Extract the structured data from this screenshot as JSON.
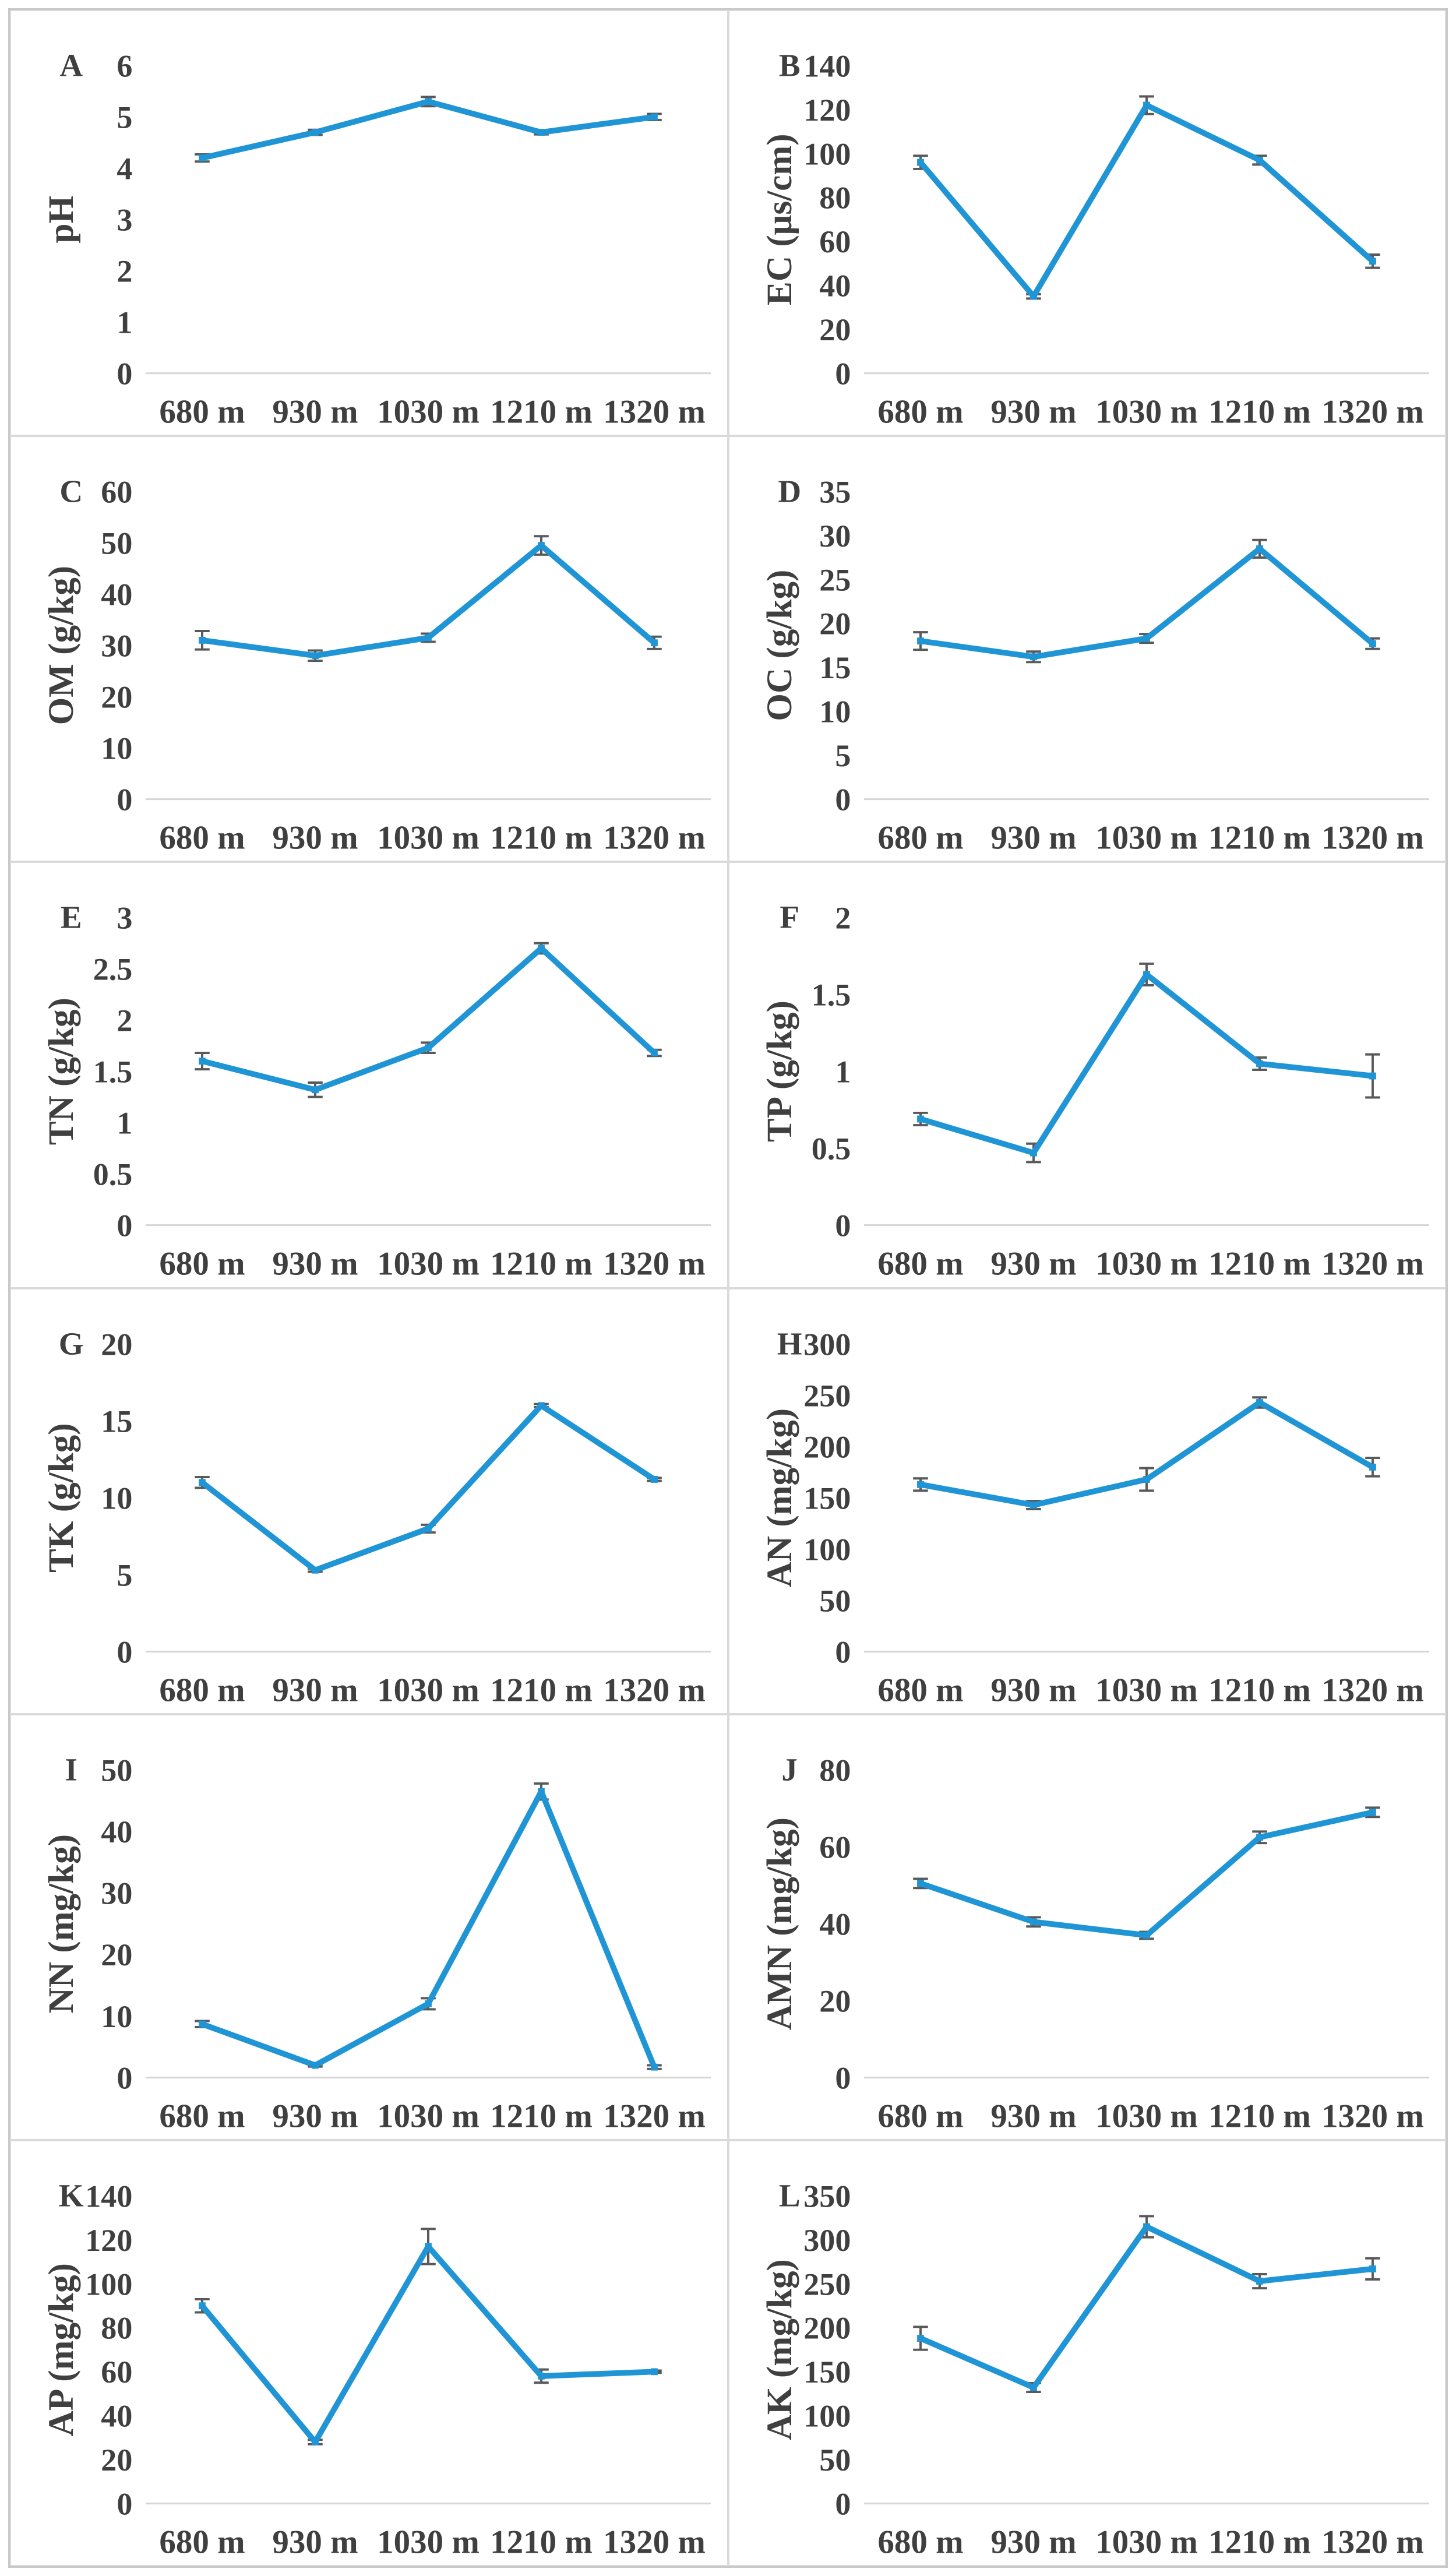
{
  "figure": {
    "description": "Soil property line charts across five elevations",
    "categories": [
      "680 m",
      "930 m",
      "1030 m",
      "1210 m",
      "1320 m"
    ],
    "line_color": "#2095d6",
    "error_bar_color": "#595959",
    "text_color": "#3f3f3f",
    "baseline_color": "#d6d6d6"
  },
  "chart_data": [
    {
      "type": "line",
      "panel": "A",
      "ylabel": "pH",
      "categories": [
        "680 m",
        "930 m",
        "1030 m",
        "1210 m",
        "1320 m"
      ],
      "values": [
        4.2,
        4.7,
        5.3,
        4.7,
        5.0
      ],
      "errors": [
        0.07,
        0.05,
        0.09,
        0.04,
        0.06
      ],
      "ylim": [
        0,
        6
      ],
      "ytick_step": 1,
      "grid": false,
      "legend": "none"
    },
    {
      "type": "line",
      "panel": "B",
      "ylabel": "EC (μs/cm)",
      "categories": [
        "680 m",
        "930 m",
        "1030 m",
        "1210 m",
        "1320 m"
      ],
      "values": [
        96,
        35,
        122,
        97,
        51
      ],
      "errors": [
        3,
        1,
        4,
        2,
        3
      ],
      "ylim": [
        0,
        140
      ],
      "ytick_step": 20,
      "grid": false,
      "legend": "none"
    },
    {
      "type": "line",
      "panel": "C",
      "ylabel": "OM (g/kg)",
      "categories": [
        "680 m",
        "930 m",
        "1030 m",
        "1210 m",
        "1320 m"
      ],
      "values": [
        31,
        28,
        31.5,
        49.5,
        30.5
      ],
      "errors": [
        1.8,
        1.0,
        0.8,
        1.8,
        1.2
      ],
      "ylim": [
        0,
        60
      ],
      "ytick_step": 10,
      "grid": false,
      "legend": "none"
    },
    {
      "type": "line",
      "panel": "D",
      "ylabel": "OC (g/kg)",
      "categories": [
        "680 m",
        "930 m",
        "1030 m",
        "1210 m",
        "1320 m"
      ],
      "values": [
        18,
        16.2,
        18.3,
        28.5,
        17.7
      ],
      "errors": [
        1.0,
        0.6,
        0.5,
        1.0,
        0.6
      ],
      "ylim": [
        0,
        35
      ],
      "ytick_step": 5,
      "grid": false,
      "legend": "none"
    },
    {
      "type": "line",
      "panel": "E",
      "ylabel": "TN (g/kg)",
      "categories": [
        "680 m",
        "930 m",
        "1030 m",
        "1210 m",
        "1320 m"
      ],
      "values": [
        1.6,
        1.32,
        1.73,
        2.7,
        1.68
      ],
      "errors": [
        0.08,
        0.07,
        0.05,
        0.05,
        0.03
      ],
      "ylim": [
        0,
        3
      ],
      "ytick_step": 0.5,
      "grid": false,
      "legend": "none"
    },
    {
      "type": "line",
      "panel": "F",
      "ylabel": "TP (g/kg)",
      "categories": [
        "680 m",
        "930 m",
        "1030 m",
        "1210 m",
        "1320 m"
      ],
      "values": [
        0.69,
        0.47,
        1.63,
        1.05,
        0.97
      ],
      "errors": [
        0.04,
        0.06,
        0.07,
        0.04,
        0.14
      ],
      "ylim": [
        0,
        2
      ],
      "ytick_step": 0.5,
      "grid": false,
      "legend": "none"
    },
    {
      "type": "line",
      "panel": "G",
      "ylabel": "TK (g/kg)",
      "categories": [
        "680 m",
        "930 m",
        "1030 m",
        "1210 m",
        "1320 m"
      ],
      "values": [
        11,
        5.3,
        8,
        16,
        11.2
      ],
      "errors": [
        0.35,
        0.1,
        0.25,
        0.1,
        0.1
      ],
      "ylim": [
        0,
        20
      ],
      "ytick_step": 5,
      "grid": false,
      "legend": "none"
    },
    {
      "type": "line",
      "panel": "H",
      "ylabel": "AN (mg/kg)",
      "categories": [
        "680 m",
        "930 m",
        "1030 m",
        "1210 m",
        "1320 m"
      ],
      "values": [
        163,
        143,
        168,
        243,
        180
      ],
      "errors": [
        6,
        4,
        11,
        5,
        9
      ],
      "ylim": [
        0,
        300
      ],
      "ytick_step": 50,
      "grid": false,
      "legend": "none"
    },
    {
      "type": "line",
      "panel": "I",
      "ylabel": "NN (mg/kg)",
      "categories": [
        "680 m",
        "930 m",
        "1030 m",
        "1210 m",
        "1320 m"
      ],
      "values": [
        8.7,
        2.0,
        12,
        46.5,
        1.7
      ],
      "errors": [
        0.5,
        0.2,
        0.9,
        1.3,
        0.3
      ],
      "ylim": [
        0,
        50
      ],
      "ytick_step": 10,
      "grid": false,
      "legend": "none"
    },
    {
      "type": "line",
      "panel": "J",
      "ylabel": "AMN (mg/kg)",
      "categories": [
        "680 m",
        "930 m",
        "1030 m",
        "1210 m",
        "1320 m"
      ],
      "values": [
        50.5,
        40.5,
        37,
        62.5,
        69
      ],
      "errors": [
        1.2,
        1.2,
        0.9,
        1.5,
        1.2
      ],
      "ylim": [
        0,
        80
      ],
      "ytick_step": 20,
      "grid": false,
      "legend": "none"
    },
    {
      "type": "line",
      "panel": "K",
      "ylabel": "AP (mg/kg)",
      "categories": [
        "680 m",
        "930 m",
        "1030 m",
        "1210 m",
        "1320 m"
      ],
      "values": [
        90,
        28,
        117,
        58,
        60
      ],
      "errors": [
        3,
        1,
        8,
        3,
        0.5
      ],
      "ylim": [
        0,
        140
      ],
      "ytick_step": 20,
      "grid": false,
      "legend": "none"
    },
    {
      "type": "line",
      "panel": "L",
      "ylabel": "AK (mg/kg)",
      "categories": [
        "680 m",
        "930 m",
        "1030 m",
        "1210 m",
        "1320 m"
      ],
      "values": [
        188,
        132,
        315,
        253,
        267
      ],
      "errors": [
        13,
        5,
        12,
        8,
        12
      ],
      "ylim": [
        0,
        350
      ],
      "ytick_step": 50,
      "grid": false,
      "legend": "none"
    }
  ]
}
